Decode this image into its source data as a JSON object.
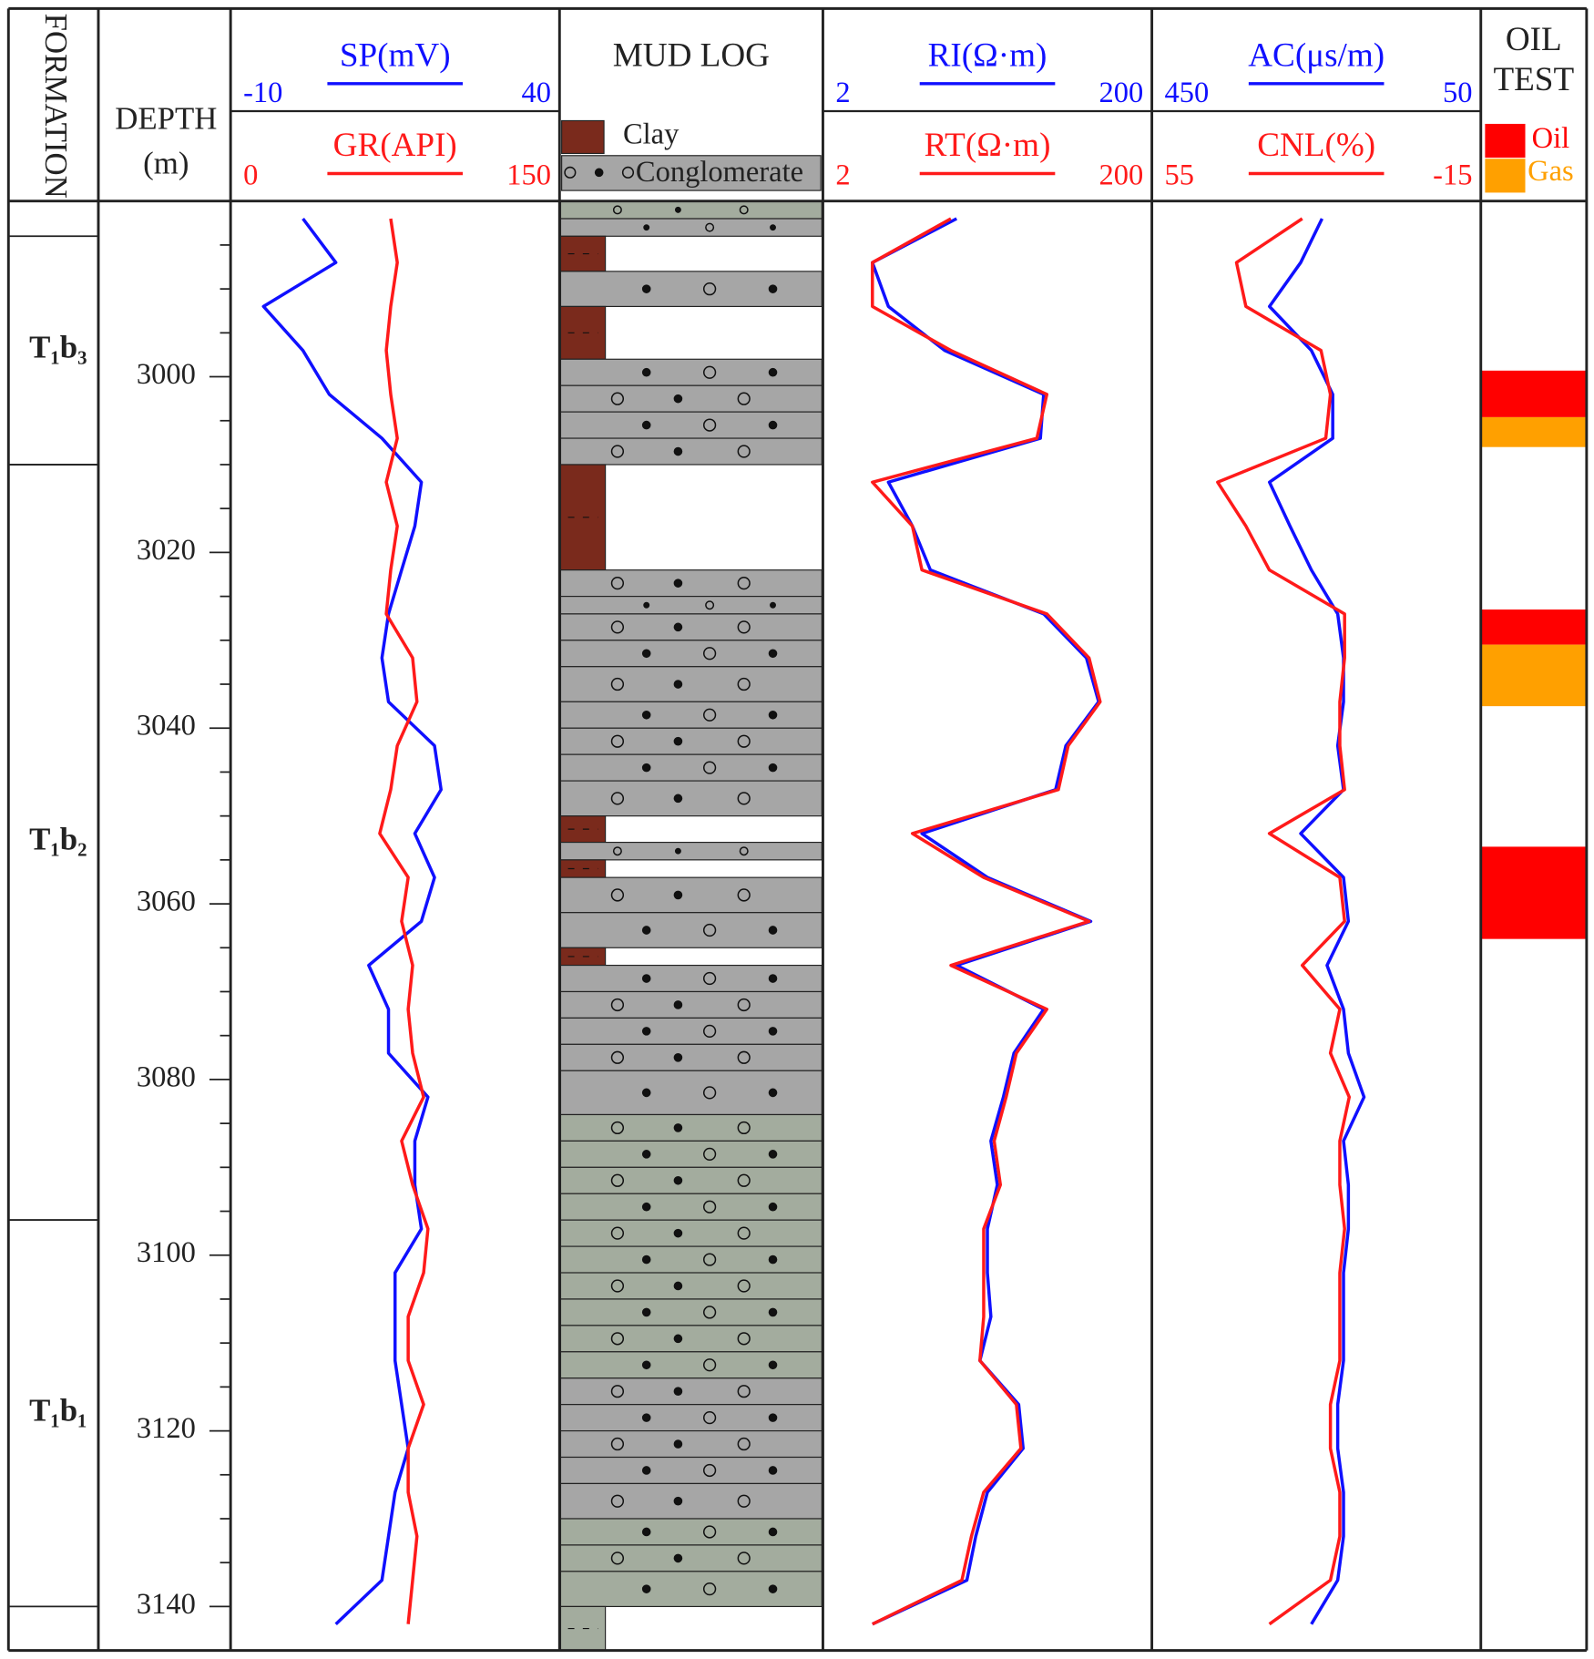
{
  "chart_data": {
    "type": "well-log",
    "formation_title": "FORMATION",
    "ylabel": "DEPTH",
    "yunit": "(m)",
    "ylim": [
      2980,
      3145
    ],
    "yticks": [
      3000,
      3020,
      3040,
      3060,
      3080,
      3100,
      3120,
      3140
    ],
    "yminorticks": [
      2985,
      2990,
      2995,
      3005,
      3010,
      3015,
      3025,
      3030,
      3035,
      3045,
      3050,
      3055,
      3065,
      3070,
      3075,
      3085,
      3090,
      3095,
      3105,
      3110,
      3115,
      3125,
      3130,
      3135,
      3145
    ],
    "formations": [
      {
        "label": "T₁b₃",
        "top": 2984,
        "bottom": 3010
      },
      {
        "label": "T₁b₂",
        "top": 3010,
        "bottom": 3096
      },
      {
        "label": "T₁b₁",
        "top": 3096,
        "bottom": 3140
      }
    ],
    "depth": [
      2982,
      2987,
      2992,
      2997,
      3002,
      3007,
      3012,
      3017,
      3022,
      3027,
      3032,
      3037,
      3042,
      3047,
      3052,
      3057,
      3062,
      3067,
      3072,
      3077,
      3082,
      3087,
      3092,
      3097,
      3102,
      3107,
      3112,
      3117,
      3122,
      3127,
      3132,
      3137,
      3142
    ],
    "tracks": [
      {
        "type": "line",
        "series": [
          {
            "name": "SP(mV)",
            "color": "#1010ff",
            "xlim": [
              -10,
              40
            ],
            "xscale": "linear",
            "values": [
              1,
              6,
              -5,
              1,
              5,
              13,
              19,
              18,
              16,
              14,
              13,
              14,
              21,
              22,
              18,
              21,
              19,
              11,
              14,
              14,
              20,
              18,
              18,
              19,
              15,
              15,
              15,
              16,
              17,
              15,
              14,
              13,
              6
            ]
          },
          {
            "name": "GR(API)",
            "color": "#ff1a1a",
            "xlim": [
              0,
              150
            ],
            "xscale": "linear",
            "values": [
              73,
              76,
              73,
              71,
              73,
              76,
              71,
              76,
              73,
              71,
              83,
              85,
              76,
              73,
              68,
              81,
              78,
              83,
              81,
              83,
              88,
              78,
              83,
              90,
              88,
              81,
              81,
              88,
              81,
              81,
              85,
              83,
              81
            ]
          }
        ]
      },
      {
        "type": "lithology",
        "title": "MUD LOG",
        "legend": [
          {
            "name": "Clay",
            "color": "#7a2a1c"
          },
          {
            "name": "Conglomerate",
            "color": "#a6a6a6"
          }
        ],
        "intervals": [
          {
            "top": 2980,
            "bottom": 2982,
            "lith": "Conglomerate",
            "color": "#a3ac9e"
          },
          {
            "top": 2982,
            "bottom": 2984,
            "lith": "Conglomerate",
            "color": "#a6a6a6"
          },
          {
            "top": 2984,
            "bottom": 2988,
            "lith": "Clay",
            "color": "#7a2a1c"
          },
          {
            "top": 2988,
            "bottom": 2992,
            "lith": "Conglomerate",
            "color": "#a6a6a6"
          },
          {
            "top": 2992,
            "bottom": 2998,
            "lith": "Clay",
            "color": "#7a2a1c"
          },
          {
            "top": 2998,
            "bottom": 3001,
            "lith": "Conglomerate",
            "color": "#a6a6a6"
          },
          {
            "top": 3001,
            "bottom": 3004,
            "lith": "Conglomerate",
            "color": "#a6a6a6"
          },
          {
            "top": 3004,
            "bottom": 3007,
            "lith": "Conglomerate",
            "color": "#a6a6a6"
          },
          {
            "top": 3007,
            "bottom": 3010,
            "lith": "Conglomerate",
            "color": "#a6a6a6"
          },
          {
            "top": 3010,
            "bottom": 3022,
            "lith": "Clay",
            "color": "#7a2a1c"
          },
          {
            "top": 3022,
            "bottom": 3025,
            "lith": "Conglomerate",
            "color": "#a6a6a6"
          },
          {
            "top": 3025,
            "bottom": 3027,
            "lith": "Conglomerate",
            "color": "#a6a6a6"
          },
          {
            "top": 3027,
            "bottom": 3030,
            "lith": "Conglomerate",
            "color": "#a6a6a6"
          },
          {
            "top": 3030,
            "bottom": 3033,
            "lith": "Conglomerate",
            "color": "#a6a6a6"
          },
          {
            "top": 3033,
            "bottom": 3037,
            "lith": "Conglomerate",
            "color": "#a6a6a6"
          },
          {
            "top": 3037,
            "bottom": 3040,
            "lith": "Conglomerate",
            "color": "#a6a6a6"
          },
          {
            "top": 3040,
            "bottom": 3043,
            "lith": "Conglomerate",
            "color": "#a6a6a6"
          },
          {
            "top": 3043,
            "bottom": 3046,
            "lith": "Conglomerate",
            "color": "#a6a6a6"
          },
          {
            "top": 3046,
            "bottom": 3050,
            "lith": "Conglomerate",
            "color": "#a6a6a6"
          },
          {
            "top": 3050,
            "bottom": 3053,
            "lith": "Clay",
            "color": "#7a2a1c"
          },
          {
            "top": 3053,
            "bottom": 3055,
            "lith": "Conglomerate",
            "color": "#a6a6a6"
          },
          {
            "top": 3055,
            "bottom": 3057,
            "lith": "Clay",
            "color": "#7a2a1c"
          },
          {
            "top": 3057,
            "bottom": 3061,
            "lith": "Conglomerate",
            "color": "#a6a6a6"
          },
          {
            "top": 3061,
            "bottom": 3065,
            "lith": "Conglomerate",
            "color": "#a6a6a6"
          },
          {
            "top": 3065,
            "bottom": 3067,
            "lith": "Clay",
            "color": "#7a2a1c"
          },
          {
            "top": 3067,
            "bottom": 3070,
            "lith": "Conglomerate",
            "color": "#a6a6a6"
          },
          {
            "top": 3070,
            "bottom": 3073,
            "lith": "Conglomerate",
            "color": "#a6a6a6"
          },
          {
            "top": 3073,
            "bottom": 3076,
            "lith": "Conglomerate",
            "color": "#a6a6a6"
          },
          {
            "top": 3076,
            "bottom": 3079,
            "lith": "Conglomerate",
            "color": "#a6a6a6"
          },
          {
            "top": 3079,
            "bottom": 3084,
            "lith": "Conglomerate",
            "color": "#a6a6a6"
          },
          {
            "top": 3084,
            "bottom": 3087,
            "lith": "Conglomerate",
            "color": "#a3ac9e"
          },
          {
            "top": 3087,
            "bottom": 3090,
            "lith": "Conglomerate",
            "color": "#a3ac9e"
          },
          {
            "top": 3090,
            "bottom": 3093,
            "lith": "Conglomerate",
            "color": "#a3ac9e"
          },
          {
            "top": 3093,
            "bottom": 3096,
            "lith": "Conglomerate",
            "color": "#a3ac9e"
          },
          {
            "top": 3096,
            "bottom": 3099,
            "lith": "Conglomerate",
            "color": "#a3ac9e"
          },
          {
            "top": 3099,
            "bottom": 3102,
            "lith": "Conglomerate",
            "color": "#a3ac9e"
          },
          {
            "top": 3102,
            "bottom": 3105,
            "lith": "Conglomerate",
            "color": "#a3ac9e"
          },
          {
            "top": 3105,
            "bottom": 3108,
            "lith": "Conglomerate",
            "color": "#a3ac9e"
          },
          {
            "top": 3108,
            "bottom": 3111,
            "lith": "Conglomerate",
            "color": "#a3ac9e"
          },
          {
            "top": 3111,
            "bottom": 3114,
            "lith": "Conglomerate",
            "color": "#a3ac9e"
          },
          {
            "top": 3114,
            "bottom": 3117,
            "lith": "Conglomerate",
            "color": "#a6a6a6"
          },
          {
            "top": 3117,
            "bottom": 3120,
            "lith": "Conglomerate",
            "color": "#a6a6a6"
          },
          {
            "top": 3120,
            "bottom": 3123,
            "lith": "Conglomerate",
            "color": "#a6a6a6"
          },
          {
            "top": 3123,
            "bottom": 3126,
            "lith": "Conglomerate",
            "color": "#a6a6a6"
          },
          {
            "top": 3126,
            "bottom": 3130,
            "lith": "Conglomerate",
            "color": "#a6a6a6"
          },
          {
            "top": 3130,
            "bottom": 3133,
            "lith": "Conglomerate",
            "color": "#a3ac9e"
          },
          {
            "top": 3133,
            "bottom": 3136,
            "lith": "Conglomerate",
            "color": "#a3ac9e"
          },
          {
            "top": 3136,
            "bottom": 3140,
            "lith": "Conglomerate",
            "color": "#a3ac9e"
          },
          {
            "top": 3140,
            "bottom": 3145,
            "lith": "Clay",
            "color": "#a3ac9e"
          }
        ]
      },
      {
        "type": "line",
        "series": [
          {
            "name": "RI(Ω·m)",
            "color": "#1010ff",
            "xlim": [
              2,
              200
            ],
            "xscale": "log",
            "values": [
              13,
              4,
              5,
              11,
              44,
              42,
              5,
              7,
              9,
              44,
              80,
              95,
              60,
              52,
              8,
              20,
              85,
              13,
              44,
              29,
              25,
              21,
              23,
              20,
              20,
              21,
              18,
              31,
              33,
              20,
              17,
              15,
              4
            ]
          },
          {
            "name": "RT(Ω·m)",
            "color": "#ff1a1a",
            "xlim": [
              2,
              200
            ],
            "xscale": "log",
            "values": [
              12,
              4,
              4,
              12,
              46,
              40,
              4,
              7,
              8,
              46,
              83,
              97,
              62,
              54,
              7,
              19,
              83,
              12,
              46,
              30,
              26,
              22,
              24,
              19,
              19,
              19,
              18,
              30,
              32,
              19,
              16,
              14,
              4
            ]
          }
        ]
      },
      {
        "type": "line",
        "series": [
          {
            "name": "AC(μs/m)",
            "color": "#1010ff",
            "xlim": [
              450,
              50
            ],
            "xscale": "linear",
            "values": [
              243,
              269,
              307,
              256,
              230,
              230,
              307,
              282,
              256,
              224,
              217,
              217,
              224,
              217,
              269,
              217,
              211,
              237,
              217,
              211,
              192,
              217,
              211,
              211,
              217,
              217,
              217,
              224,
              224,
              217,
              217,
              224,
              256
            ]
          },
          {
            "name": "CNL(%)",
            "color": "#ff1a1a",
            "xlim": [
              55,
              -15
            ],
            "xscale": "linear",
            "values": [
              23,
              37,
              35,
              19,
              17,
              18,
              41,
              35,
              30,
              14,
              14,
              15,
              15,
              14,
              30,
              15,
              14,
              23,
              15,
              17,
              13,
              15,
              15,
              14,
              15,
              15,
              15,
              17,
              17,
              15,
              15,
              17,
              30
            ]
          }
        ]
      },
      {
        "type": "interval",
        "title": [
          "OIL",
          "TEST"
        ],
        "legend": [
          {
            "name": "Oil",
            "color": "#ff0000"
          },
          {
            "name": "Gas",
            "color": "#ffa000"
          }
        ],
        "intervals": [
          {
            "top": 2999.3,
            "bottom": 3004.6,
            "kind": "Oil"
          },
          {
            "top": 3004.6,
            "bottom": 3008,
            "kind": "Gas"
          },
          {
            "top": 3026.5,
            "bottom": 3030.5,
            "kind": "Oil"
          },
          {
            "top": 3030.5,
            "bottom": 3037.5,
            "kind": "Gas"
          },
          {
            "top": 3053.5,
            "bottom": 3064,
            "kind": "Oil"
          }
        ]
      }
    ]
  }
}
